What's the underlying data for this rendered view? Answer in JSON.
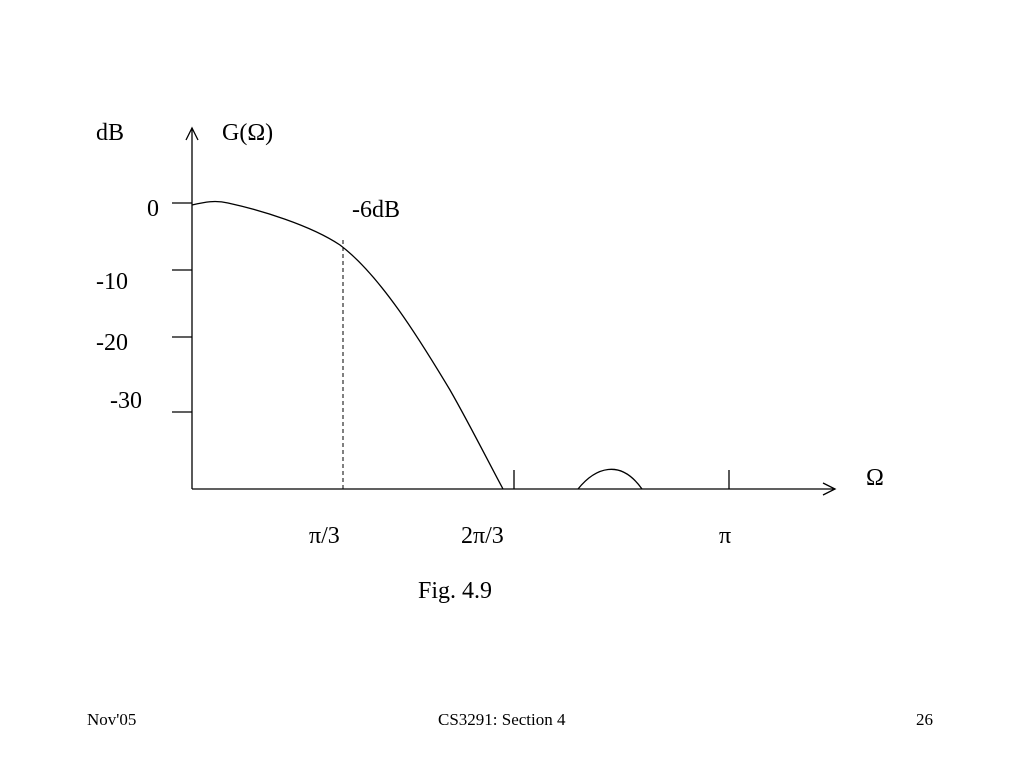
{
  "figure": {
    "y_label": "dB",
    "title": "G(Ω)",
    "y_ticks": [
      "0",
      "-10",
      "-20",
      "-30"
    ],
    "annotation": "-6dB",
    "x_label": "Ω",
    "x_ticks": [
      "π/3",
      "2π/3",
      "π"
    ],
    "caption": "Fig. 4.9"
  },
  "footer": {
    "left": "Nov'05",
    "center": "CS3291: Section 4",
    "right": "26"
  }
}
